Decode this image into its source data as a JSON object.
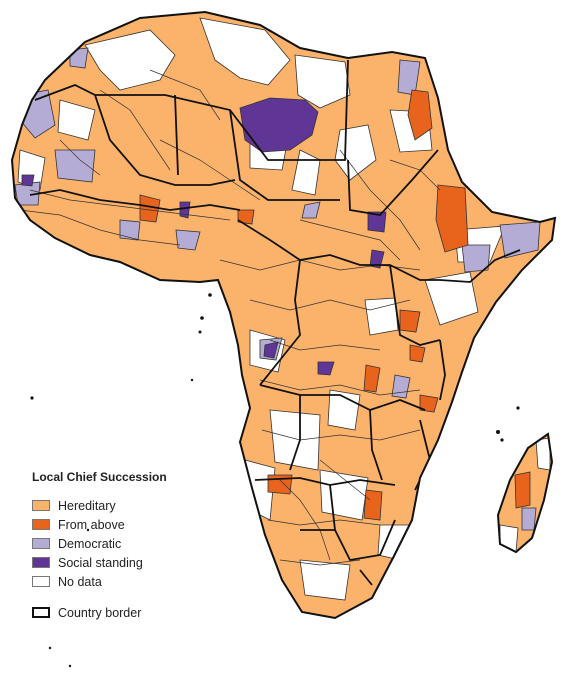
{
  "legend": {
    "title": "Local Chief Succession",
    "items": [
      {
        "label": "Hereditary",
        "color": "#fbb26b"
      },
      {
        "label": "From above",
        "color": "#e8641c"
      },
      {
        "label": "Democratic",
        "color": "#b5acd6"
      },
      {
        "label": "Social standing",
        "color": "#5f3696"
      },
      {
        "label": "No data",
        "color": "#ffffff"
      }
    ],
    "border_label": "Country border"
  },
  "colors": {
    "hereditary": "#fbb26b",
    "from_above": "#e8641c",
    "democratic": "#b5acd6",
    "social_standing": "#5f3696",
    "no_data": "#ffffff",
    "border": "#111111"
  }
}
